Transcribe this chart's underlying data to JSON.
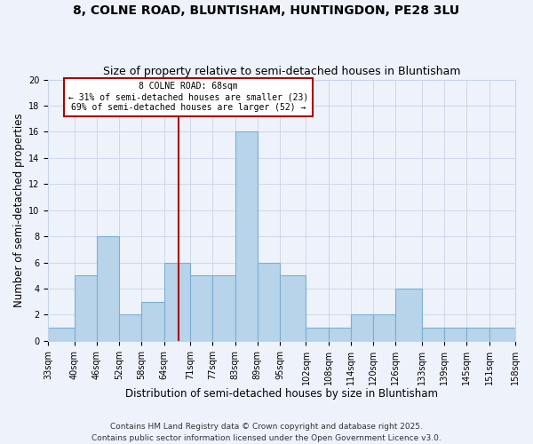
{
  "title": "8, COLNE ROAD, BLUNTISHAM, HUNTINGDON, PE28 3LU",
  "subtitle": "Size of property relative to semi-detached houses in Bluntisham",
  "xlabel": "Distribution of semi-detached houses by size in Bluntisham",
  "ylabel": "Number of semi-detached properties",
  "bins": [
    33,
    40,
    46,
    52,
    58,
    64,
    71,
    77,
    83,
    89,
    95,
    102,
    108,
    114,
    120,
    126,
    133,
    139,
    145,
    151,
    158
  ],
  "bin_labels": [
    "33sqm",
    "40sqm",
    "46sqm",
    "52sqm",
    "58sqm",
    "64sqm",
    "71sqm",
    "77sqm",
    "83sqm",
    "89sqm",
    "95sqm",
    "102sqm",
    "108sqm",
    "114sqm",
    "120sqm",
    "126sqm",
    "133sqm",
    "139sqm",
    "145sqm",
    "151sqm",
    "158sqm"
  ],
  "counts": [
    1,
    5,
    8,
    2,
    3,
    6,
    5,
    5,
    16,
    6,
    5,
    1,
    1,
    2,
    2,
    4,
    1,
    1,
    1,
    1
  ],
  "bar_color": "#b8d4ea",
  "bar_edge_color": "#7aafd4",
  "background_color": "#eef2fa",
  "grid_color": "#c8d4e8",
  "vline_x": 68,
  "vline_color": "#aa0000",
  "annotation_text": "8 COLNE ROAD: 68sqm\n← 31% of semi-detached houses are smaller (23)\n69% of semi-detached houses are larger (52) →",
  "annotation_box_color": "#ffffff",
  "annotation_box_edge": "#aa0000",
  "ylim": [
    0,
    20
  ],
  "yticks": [
    0,
    2,
    4,
    6,
    8,
    10,
    12,
    14,
    16,
    18,
    20
  ],
  "footer": "Contains HM Land Registry data © Crown copyright and database right 2025.\nContains public sector information licensed under the Open Government Licence v3.0.",
  "title_fontsize": 10,
  "subtitle_fontsize": 9,
  "label_fontsize": 8.5,
  "tick_fontsize": 7,
  "footer_fontsize": 6.5
}
